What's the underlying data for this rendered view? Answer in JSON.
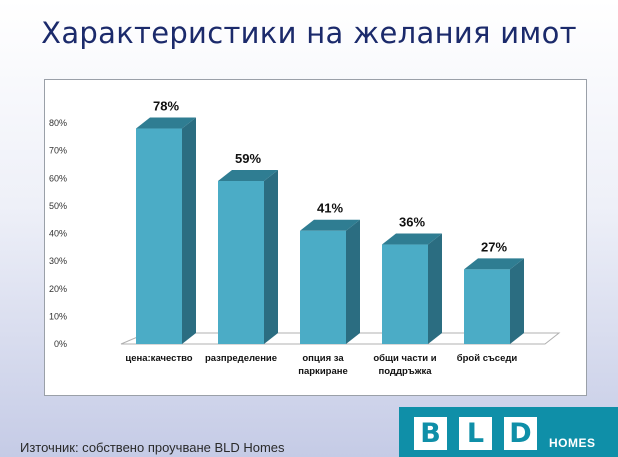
{
  "slide": {
    "title": "Характеристики на желания имот",
    "source": "Източник: собствено проучване  BLD Homes"
  },
  "logo": {
    "letters": [
      "B",
      "L",
      "D"
    ],
    "word": "HOMES",
    "color": "#0f8fa8"
  },
  "chart_data": {
    "type": "bar",
    "categories": [
      [
        "цена:качество"
      ],
      [
        "разпределение"
      ],
      [
        "опция за",
        "паркиране"
      ],
      [
        "общи части и",
        "поддръжка"
      ],
      [
        "брой съседи"
      ]
    ],
    "values": [
      78,
      59,
      41,
      36,
      27
    ],
    "data_labels": [
      "78%",
      "59%",
      "41%",
      "36%",
      "27%"
    ],
    "y_ticks": [
      "0%",
      "10%",
      "20%",
      "30%",
      "40%",
      "50%",
      "60%",
      "70%",
      "80%"
    ],
    "ylim": [
      0,
      80
    ],
    "grid": false,
    "legend": "none",
    "style": "3d-column",
    "colors": {
      "bar_front": "#4bacc6",
      "bar_side": "#2b6d81",
      "bar_top": "#2f7d92",
      "floor": "#ffffff"
    }
  }
}
